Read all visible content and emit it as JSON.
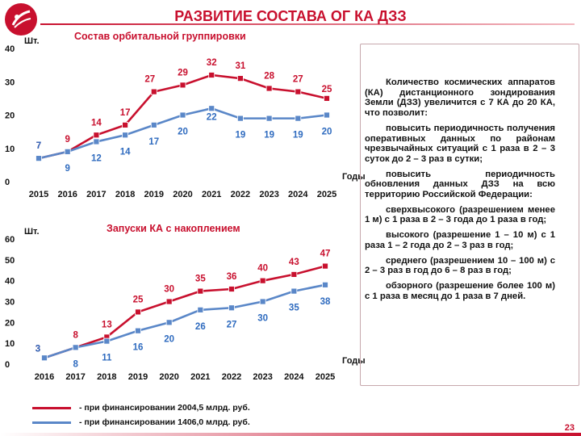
{
  "header": {
    "title": "РАЗВИТИЕ СОСТАВА ОГ КА ДЗЗ"
  },
  "colors": {
    "accent": "#c8102e",
    "red_series": "#c8102e",
    "blue_series": "#5a87c8"
  },
  "chart_data": [
    {
      "type": "line",
      "title": "Состав орбитальной группировки",
      "ylabel": "Шт.",
      "xlabel": "Годы",
      "x": [
        "2015",
        "2016",
        "2017",
        "2018",
        "2019",
        "2020",
        "2021",
        "2022",
        "2023",
        "2024",
        "2025"
      ],
      "ylim": [
        0,
        40
      ],
      "yticks": [
        0,
        10,
        20,
        30,
        40
      ],
      "grid": false,
      "series": [
        {
          "values": [
            7,
            9,
            14,
            17,
            27,
            29,
            32,
            31,
            28,
            27,
            25
          ]
        },
        {
          "values": [
            7,
            9,
            12,
            14,
            17,
            20,
            22,
            19,
            19,
            19,
            20
          ]
        }
      ]
    },
    {
      "type": "line",
      "title": "Запуски КА с накоплением",
      "ylabel": "Шт.",
      "xlabel": "Годы",
      "x": [
        "2016",
        "2017",
        "2018",
        "2019",
        "2020",
        "2021",
        "2022",
        "2023",
        "2024",
        "2025"
      ],
      "ylim": [
        0,
        60
      ],
      "yticks": [
        0,
        10,
        20,
        30,
        40,
        50,
        60
      ],
      "grid": false,
      "series": [
        {
          "values": [
            3,
            8,
            13,
            25,
            30,
            35,
            36,
            40,
            43,
            47
          ]
        },
        {
          "values": [
            3,
            8,
            11,
            16,
            20,
            26,
            27,
            30,
            35,
            38
          ]
        }
      ]
    }
  ],
  "legend": [
    {
      "label": "- при финансировании 2004,5 млрд. руб.",
      "color": "#c8102e"
    },
    {
      "label": "- при финансировании 1406,0 млрд. руб.",
      "color": "#5a87c8"
    }
  ],
  "sidebar": {
    "paragraphs": [
      "Количество космических аппаратов (КА) дистанционного зондирования Земли (ДЗЗ) увеличится с 7 КА до 20 КА, что позволит:",
      "повысить периодичность получения оперативных данных по районам чрезвычайных ситуаций с 1 раза в 2 – 3 суток до 2 – 3 раз в сутки;",
      "повысить периодичность обновления данных ДЗЗ на всю территорию Российской Федерации:",
      "сверхвысокого (разрешением менее 1 м) с 1 раза в 2 – 3 года до 1 раза в год;",
      "высокого (разрешение 1 – 10 м) с 1 раза 1 – 2 года до 2 – 3 раз в год;",
      "среднего (разрешением 10 – 100 м) с 2 – 3 раз в год до 6 – 8 раз в год;",
      "обзорного (разрешение более 100 м) с 1 раза в месяц до 1 раза в 7 дней."
    ]
  },
  "page_number": "23"
}
